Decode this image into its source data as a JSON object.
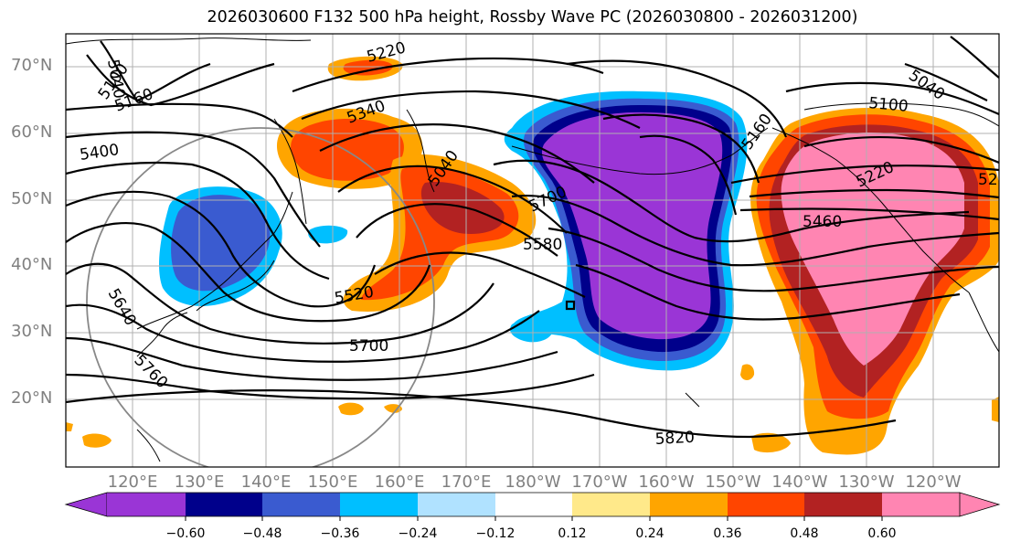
{
  "title": "2026030600 F132 500 hPa height, Rossby Wave PC (2026030800 - 2026031200)",
  "map": {
    "lat_labels": [
      "70°N",
      "60°N",
      "50°N",
      "40°N",
      "30°N",
      "20°N"
    ],
    "lon_labels": [
      "120°E",
      "130°E",
      "140°E",
      "150°E",
      "160°E",
      "170°E",
      "180°W",
      "170°W",
      "160°W",
      "150°W",
      "140°W",
      "130°W",
      "120°W"
    ],
    "contour_labels": [
      "5040",
      "5100",
      "5160",
      "5220",
      "5340",
      "5400",
      "5040",
      "5700",
      "5580",
      "5520",
      "5640",
      "5700",
      "5760",
      "5820",
      "5160",
      "5040",
      "5100",
      "5220",
      "5460",
      "52"
    ],
    "label_color": "#808080"
  },
  "colorbar": {
    "ticks": [
      "−0.60",
      "−0.48",
      "−0.36",
      "−0.24",
      "−0.12",
      "0.12",
      "0.24",
      "0.36",
      "0.48",
      "0.60"
    ],
    "colors": [
      "#9a35d6",
      "#00008b",
      "#3a5bd0",
      "#00bfff",
      "#b0e2ff",
      "#ffffff",
      "#ffe98a",
      "#ffa500",
      "#ff4500",
      "#b22222",
      "#ff85b2"
    ]
  }
}
